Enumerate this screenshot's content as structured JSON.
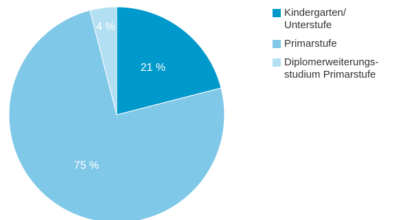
{
  "chart_data": {
    "type": "pie",
    "title": "",
    "slices": [
      {
        "label": "Kindergarten/ Unterstufe",
        "value": 21,
        "label_text": "21 %",
        "color": "#0099cc"
      },
      {
        "label": "Primarstufe",
        "value": 75,
        "label_text": "75 %",
        "color": "#80c8e8"
      },
      {
        "label": "Diplomerweiterungs-studium Primarstufe",
        "value": 4,
        "label_text": "4 %",
        "color": "#b3dff2"
      }
    ],
    "legend": {
      "placement": "right",
      "items": [
        {
          "line1": "Kindergarten/",
          "line2": "Unterstufe",
          "color": "#0099cc"
        },
        {
          "line1": "Primarstufe",
          "line2": "",
          "color": "#80c8e8"
        },
        {
          "line1": "Diplomerweiterungs-",
          "line2": "studium Primarstufe",
          "color": "#b3dff2"
        }
      ]
    }
  }
}
